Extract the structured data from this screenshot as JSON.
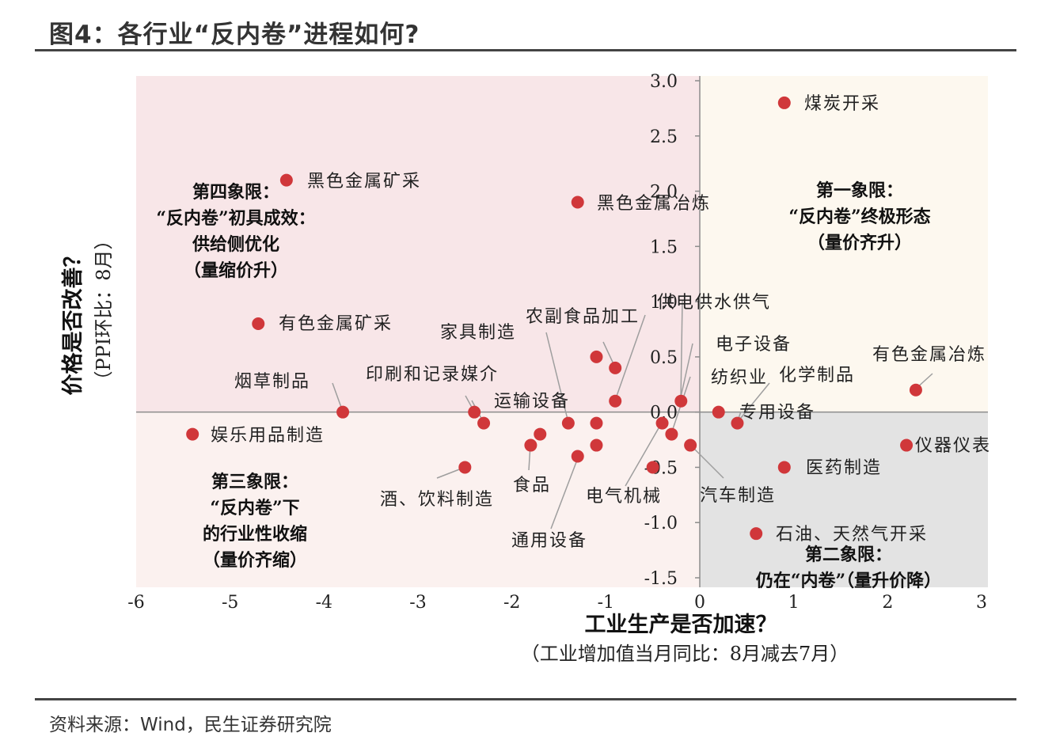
{
  "title": "图4：各行业“反内卷”进程如何?",
  "source": "资料来源：Wind，民生证券研究院",
  "colors": {
    "q1_bg": "#fdf8ef",
    "q2_bg": "#e3e3e3",
    "q3_bg": "#fbf1ef",
    "q4_bg": "#f8e6e8",
    "point": "#d0373a",
    "leader": "#9e9e9e"
  },
  "quadrants": {
    "q1": [
      "第一象限：",
      "“反内卷”终极形态",
      "（量价齐升）"
    ],
    "q2": [
      "第二象限：",
      "仍在“内卷”（量升价降）"
    ],
    "q3": [
      "第三象限：",
      "“反内卷”下",
      "的行业性收缩",
      "（量价齐缩）"
    ],
    "q4": [
      "第四象限：",
      "“反内卷”初具成效：",
      "供给侧优化",
      "（量缩价升）"
    ]
  },
  "chart_data": {
    "type": "scatter",
    "xlabel": "工业生产是否加速？",
    "xlabel_sub": "（工业增加值当月同比：8月减去7月）",
    "ylabel": "价格是否改善？",
    "ylabel_sub": "（PPI环比：8月）",
    "xlim": [
      -6,
      3
    ],
    "ylim": [
      -1.5,
      3.0
    ],
    "x_ticks": [
      "-6",
      "-5",
      "-4",
      "-3",
      "-2",
      "-1",
      "0",
      "1",
      "2",
      "3"
    ],
    "y_ticks": [
      "3.0",
      "2.5",
      "2.0",
      "1.5",
      "1.0",
      "0.5",
      "0.0",
      "-0.5",
      "-1.0",
      "-1.5"
    ],
    "points": [
      {
        "name": "煤炭开采",
        "x": 0.9,
        "y": 2.8
      },
      {
        "name": "黑色金属矿采",
        "x": -4.4,
        "y": 2.1
      },
      {
        "name": "黑色金属冶炼",
        "x": -1.3,
        "y": 1.9
      },
      {
        "name": "有色金属矿采",
        "x": -4.7,
        "y": 0.8
      },
      {
        "name": "家具制造",
        "x": -1.4,
        "y": -0.1
      },
      {
        "name": "农副食品加工",
        "x": -0.9,
        "y": 0.4
      },
      {
        "name": "供电供水供气",
        "x": -0.9,
        "y": 0.1
      },
      {
        "name": "电子设备",
        "x": -0.2,
        "y": 0.1
      },
      {
        "name": "纺织业",
        "x": -0.3,
        "y": -0.2
      },
      {
        "name": "化学制品",
        "x": 0.4,
        "y": -0.1
      },
      {
        "name": "专用设备",
        "x": 0.2,
        "y": 0.0
      },
      {
        "name": "有色金属冶炼",
        "x": 2.3,
        "y": 0.2
      },
      {
        "name": "仪器仪表",
        "x": 2.2,
        "y": -0.3
      },
      {
        "name": "医药制造",
        "x": 0.9,
        "y": -0.5
      },
      {
        "name": "汽车制造",
        "x": -0.1,
        "y": -0.3
      },
      {
        "name": "石油、天然气开采",
        "x": 0.6,
        "y": -1.1
      },
      {
        "name": "烟草制品",
        "x": -3.8,
        "y": 0.0
      },
      {
        "name": "印刷和记录媒介",
        "x": -2.4,
        "y": 0.0
      },
      {
        "name": "运输设备",
        "x": -1.7,
        "y": -0.2
      },
      {
        "name": "娱乐用品制造",
        "x": -5.4,
        "y": -0.2
      },
      {
        "name": "酒、饮料制造",
        "x": -2.5,
        "y": -0.5
      },
      {
        "name": "食品",
        "x": -1.8,
        "y": -0.3
      },
      {
        "name": "通用设备",
        "x": -1.3,
        "y": -0.4
      },
      {
        "name": "电气机械",
        "x": -0.4,
        "y": -0.1
      },
      {
        "name": "",
        "x": -2.3,
        "y": -0.1
      },
      {
        "name": "",
        "x": -1.1,
        "y": 0.5
      },
      {
        "name": "",
        "x": -1.1,
        "y": -0.1
      },
      {
        "name": "",
        "x": -1.1,
        "y": -0.3
      },
      {
        "name": "",
        "x": -0.5,
        "y": -0.5
      }
    ]
  }
}
